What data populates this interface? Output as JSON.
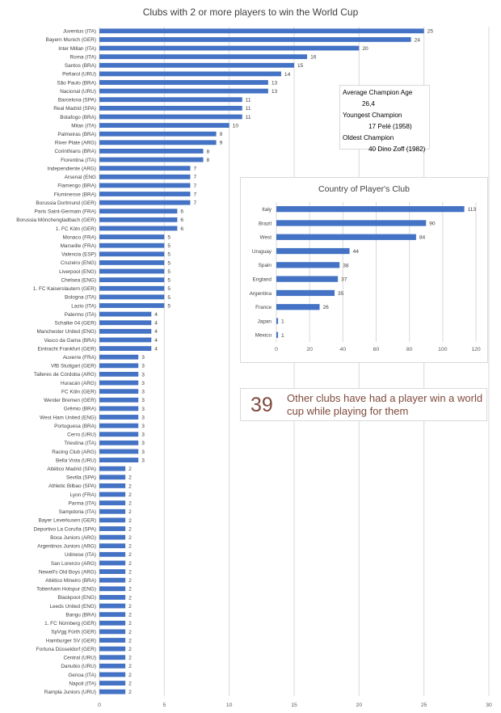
{
  "chart_data": [
    {
      "type": "bar",
      "orientation": "horizontal",
      "title": "Clubs with 2 or more players to win the World Cup",
      "xlim": [
        0,
        30
      ],
      "xticks": [
        0,
        5,
        10,
        15,
        20,
        25,
        30
      ],
      "grid": true,
      "categories": [
        "Juventus (ITA)",
        "Bayern Munich (GER)",
        "Inter Millan (ITA)",
        "Roma (ITA)",
        "Santos (BRA)",
        "Peñarol (URU)",
        "São Paulo (BRA)",
        "Nacional (URU)",
        "Barcelona (SPA)",
        "Real Madrid (SPA)",
        "Botafogo (BRA)",
        "Milan (ITA)",
        "Palmeiras (BRA)",
        "River Plate (ARG)",
        "Corinthians (BRA)",
        "Fiorentina (ITA)",
        "Independiente (ARG)",
        "Arsenal (ENG",
        "Flamengo (BRA)",
        "Fluminense (BRA)",
        "Borussia Dortmund (GER)",
        "Paris Saint-Germain (FRA)",
        "Borussia Mönchengladbach (GER)",
        "1. FC Köln (GER)",
        "Monaco (FRA)",
        "Marseille (FRA)",
        "Valencia (ESP)",
        "Cruzeiro (ENG)",
        "Liverpool (ENG)",
        "Chelsea (ENG)",
        "1. FC Kaiserslautern (GER)",
        "Bologna (ITA)",
        "Lazio (ITA)",
        "Palermo (ITA)",
        "Schalke 04 (GER)",
        "Manchester United (ENG)",
        "Vasco da Gama (BRA)",
        "Eintracht Frankfurt (GER)",
        "Auxerre (FRA)",
        "VfB Stuttgart (GER)",
        "Talleres de Córdoba (ARG)",
        "Huracán (ARG)",
        "FC Köln (GER)",
        "Werder Bremen (GER)",
        "Grêmio (BRA)",
        "West Ham United (ENG)",
        "Portuguesa (BRA)",
        "Cerro (URU)",
        "Triestina (ITA)",
        "Racing Club (ARG)",
        "Bella Vista (URU)",
        "Atlético Madrid (SPA)",
        "Sevilla (SPA)",
        "Athletic Bilbao (SPA)",
        "Lyon (FRA)",
        "Parma (ITA)",
        "Sampdoria (ITA)",
        "Bayer Leverkusen (GER)",
        "Deportivo La Coruña (SPA)",
        "Boca Juniors (ARG)",
        "Argentinos Juniors (ARG)",
        "Udinese (ITA)",
        "San Lorenzo (ARG)",
        "Newell's Old Boys (ARG)",
        "Atlético Mineiro (BRA)",
        "Tottenham Hotspur (ENG)",
        "Blackpool (ENG)",
        "Leeds United (ENG)",
        "Bangu (BRA)",
        "1. FC Nürnberg (GER)",
        "SpVgg Fürth (GER)",
        "Hamburger SV (GER)",
        "Fortuna Düsseldorf (GER)",
        "Central (URU)",
        "Danubio (URU)",
        "Genoa (ITA)",
        "Napoli (ITA)",
        "Rampla Juniors (URU)"
      ],
      "values": [
        25,
        24,
        20,
        16,
        15,
        14,
        13,
        13,
        11,
        11,
        11,
        10,
        9,
        9,
        8,
        8,
        7,
        7,
        7,
        7,
        7,
        6,
        6,
        6,
        5,
        5,
        5,
        5,
        5,
        5,
        5,
        5,
        5,
        4,
        4,
        4,
        4,
        4,
        3,
        3,
        3,
        3,
        3,
        3,
        3,
        3,
        3,
        3,
        3,
        3,
        3,
        2,
        2,
        2,
        2,
        2,
        2,
        2,
        2,
        2,
        2,
        2,
        2,
        2,
        2,
        2,
        2,
        2,
        2,
        2,
        2,
        2,
        2,
        2,
        2,
        2,
        2,
        2
      ],
      "bar_color": "#4472c4"
    },
    {
      "type": "bar",
      "orientation": "horizontal",
      "title": "Country of Player's Club",
      "xlim": [
        0,
        120
      ],
      "xticks": [
        0,
        20,
        40,
        60,
        80,
        100,
        120
      ],
      "grid": true,
      "categories": [
        "Italy",
        "Brazil",
        "West",
        "Uruguay",
        "Spain",
        "England",
        "Argentina",
        "France",
        "Japan",
        "Mexico"
      ],
      "values": [
        113,
        90,
        84,
        44,
        38,
        37,
        35,
        26,
        1,
        1
      ],
      "bar_color": "#4472c4"
    }
  ],
  "stats": {
    "avg_label": "Average Champion Age",
    "avg_value": "26,4",
    "youngest_label": "Youngest Champion",
    "youngest_value": "17 Pelé (1958)",
    "oldest_label": "Oldest Champion",
    "oldest_value": "40 Dino Zoff (1982)"
  },
  "note": {
    "number": "39",
    "text": "Other clubs have had a player win a world cup while playing for them"
  }
}
